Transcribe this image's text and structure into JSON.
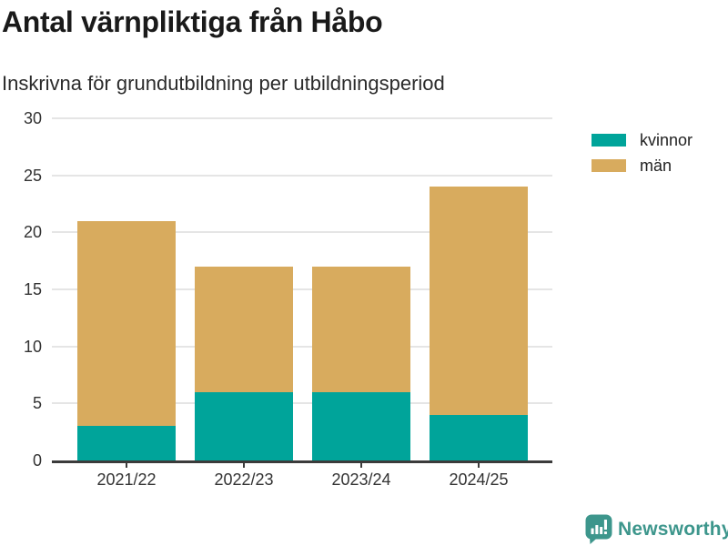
{
  "chart_data": {
    "type": "bar",
    "stacked": true,
    "title": "Antal värnpliktiga från Håbo",
    "subtitle": "Inskrivna för grundutbildning per utbildningsperiod",
    "categories": [
      "2021/22",
      "2022/23",
      "2023/24",
      "2024/25"
    ],
    "series": [
      {
        "name": "kvinnor",
        "color": "#00A49A",
        "values": [
          3,
          6,
          6,
          4
        ]
      },
      {
        "name": "män",
        "color": "#D8AB5E",
        "values": [
          18,
          11,
          11,
          20
        ]
      }
    ],
    "stacked_totals": [
      21,
      17,
      17,
      24
    ],
    "ylim": [
      0,
      30
    ],
    "yticks": [
      0,
      5,
      10,
      15,
      20,
      25,
      30
    ],
    "xlabel": "",
    "ylabel": "",
    "grid": true,
    "legend_position": "top-right"
  },
  "footer": {
    "brand": "Newsworthy",
    "brand_color": "#3D968C",
    "logo_icon": "bar-chart-speech-bubble-icon"
  }
}
